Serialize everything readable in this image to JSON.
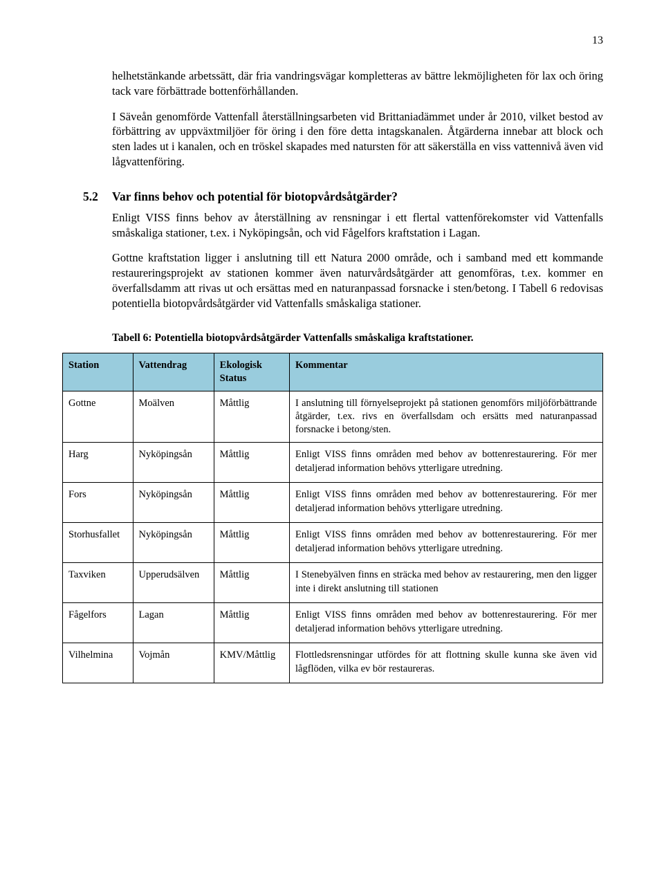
{
  "page_number": "13",
  "paragraphs": {
    "p1": "helhetstänkande arbetssätt, där fria vandringsvägar kompletteras av bättre lekmöjligheten för lax och öring tack vare förbättrade bottenförhållanden.",
    "p2": "I Säveån genomförde Vattenfall återställningsarbeten vid Brittaniadämmet under år 2010, vilket bestod av förbättring av uppväxtmiljöer för öring i den före detta intagskanalen. Åtgärderna innebar att block och sten lades ut i kanalen, och en tröskel skapades med natursten för att säkerställa en viss vattennivå även vid lågvattenföring."
  },
  "section": {
    "num": "5.2",
    "title": "Var finns behov och potential för biotopvårdsåtgärder?",
    "p3": "Enligt VISS finns behov av återställning av rensningar i ett flertal vattenförekomster vid Vattenfalls småskaliga stationer, t.ex. i Nyköpingsån, och vid Fågelfors kraftstation i Lagan.",
    "p4": "Gottne kraftstation ligger i anslutning till ett Natura 2000 område, och i samband med ett kommande restaureringsprojekt av stationen kommer även naturvårdsåtgärder att genomföras, t.ex. kommer en överfallsdamm att rivas ut och ersättas med en naturanpassad forsnacke i sten/betong. I Tabell 6 redovisas potentiella biotopvårdsåtgärder vid Vattenfalls småskaliga stationer."
  },
  "table": {
    "caption": "Tabell 6: Potentiella biotopvårdsåtgärder Vattenfalls småskaliga kraftstationer.",
    "header_bg": "#99ccdd",
    "columns": [
      "Station",
      "Vattendrag",
      "Ekologisk Status",
      "Kommentar"
    ],
    "rows": [
      [
        "Gottne",
        "Moälven",
        "Måttlig",
        "I anslutning till förnyelseprojekt på stationen genomförs miljöförbättrande åtgärder, t.ex. rivs en överfallsdam och ersätts med naturanpassad forsnacke i betong/sten."
      ],
      [
        "Harg",
        "Nyköpingsån",
        "Måttlig",
        "Enligt VISS finns områden med behov av bottenrestaurering. För mer detaljerad information behövs ytterligare utredning."
      ],
      [
        "Fors",
        "Nyköpingsån",
        "Måttlig",
        "Enligt VISS finns områden med behov av bottenrestaurering. För mer detaljerad information behövs ytterligare utredning."
      ],
      [
        "Storhusfallet",
        "Nyköpingsån",
        "Måttlig",
        "Enligt VISS finns områden med behov av bottenrestaurering. För mer detaljerad information behövs ytterligare utredning."
      ],
      [
        "Taxviken",
        "Upperudsälven",
        "Måttlig",
        "I Stenebyälven finns en sträcka med behov av restaurering, men den ligger inte i direkt anslutning till stationen"
      ],
      [
        "Fågelfors",
        "Lagan",
        "Måttlig",
        "Enligt VISS finns områden med behov av bottenrestaurering. För mer detaljerad information behövs ytterligare utredning."
      ],
      [
        "Vilhelmina",
        "Vojmån",
        "KMV/Måttlig",
        "Flottledsrensningar utfördes för att flottning skulle kunna ske även vid lågflöden, vilka ev bör restaureras."
      ]
    ]
  }
}
